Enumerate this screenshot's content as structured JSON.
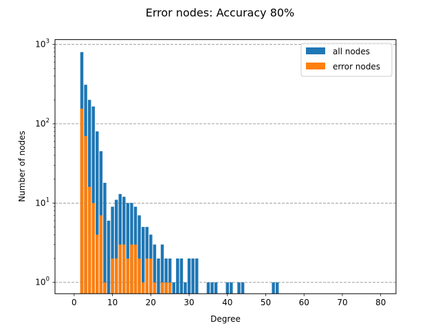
{
  "chart_data": {
    "type": "bar",
    "title": "Error nodes: Accuracy 80%",
    "xlabel": "Degree",
    "ylabel": "Number of nodes",
    "xlim": [
      -5,
      84
    ],
    "ylim": [
      0.72,
      1150
    ],
    "yscale": "log",
    "x_ticks": [
      0,
      10,
      20,
      30,
      40,
      50,
      60,
      70,
      80
    ],
    "y_ticks": [
      {
        "value": 1,
        "base": "10",
        "exp": "0"
      },
      {
        "value": 10,
        "base": "10",
        "exp": "1"
      },
      {
        "value": 100,
        "base": "10",
        "exp": "2"
      },
      {
        "value": 1000,
        "base": "10",
        "exp": "3"
      }
    ],
    "grid": "y-dashed",
    "legend_position": "top-right",
    "colors": {
      "all nodes": "#1f77b4",
      "error nodes": "#ff7f0e",
      "grid": "#808080"
    },
    "series": [
      {
        "name": "all nodes",
        "points": [
          [
            2,
            800
          ],
          [
            3,
            310
          ],
          [
            4,
            200
          ],
          [
            5,
            165
          ],
          [
            6,
            80
          ],
          [
            7,
            45
          ],
          [
            8,
            18
          ],
          [
            9,
            6
          ],
          [
            10,
            9
          ],
          [
            11,
            11
          ],
          [
            12,
            13
          ],
          [
            13,
            12
          ],
          [
            14,
            10
          ],
          [
            15,
            10
          ],
          [
            16,
            9
          ],
          [
            17,
            7
          ],
          [
            18,
            5
          ],
          [
            19,
            5
          ],
          [
            20,
            4
          ],
          [
            21,
            3
          ],
          [
            22,
            2
          ],
          [
            23,
            3
          ],
          [
            24,
            2
          ],
          [
            25,
            2
          ],
          [
            26,
            1
          ],
          [
            27,
            2
          ],
          [
            28,
            2
          ],
          [
            29,
            1
          ],
          [
            30,
            2
          ],
          [
            31,
            2
          ],
          [
            32,
            2
          ],
          [
            35,
            1
          ],
          [
            36,
            1
          ],
          [
            37,
            1
          ],
          [
            40,
            1
          ],
          [
            41,
            1
          ],
          [
            43,
            1
          ],
          [
            44,
            1
          ],
          [
            52,
            1
          ],
          [
            53,
            1
          ]
        ]
      },
      {
        "name": "error nodes",
        "points": [
          [
            2,
            155
          ],
          [
            3,
            70
          ],
          [
            4,
            16
          ],
          [
            5,
            10
          ],
          [
            6,
            4
          ],
          [
            7,
            7
          ],
          [
            8,
            1
          ],
          [
            10,
            2
          ],
          [
            11,
            2
          ],
          [
            12,
            3
          ],
          [
            13,
            3
          ],
          [
            14,
            2
          ],
          [
            15,
            3
          ],
          [
            16,
            3
          ],
          [
            17,
            2
          ],
          [
            18,
            1
          ],
          [
            19,
            2
          ],
          [
            20,
            2
          ],
          [
            21,
            1
          ],
          [
            23,
            1
          ],
          [
            24,
            1
          ],
          [
            25,
            1
          ]
        ]
      }
    ]
  }
}
